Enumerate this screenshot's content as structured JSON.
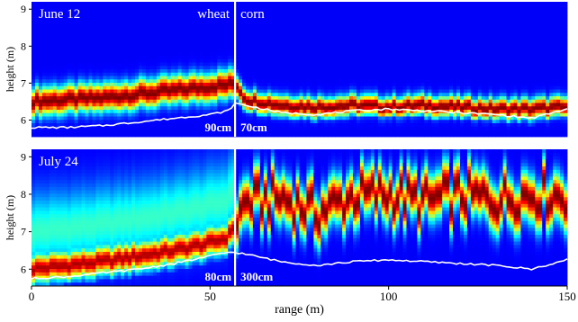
{
  "chart_data": {
    "type": "heatmap",
    "xlabel": "range (m)",
    "x_ticks": [
      0,
      50,
      100,
      150
    ],
    "xlim": [
      0,
      150
    ],
    "crop_boundary_x": 57,
    "colormap": "jet",
    "panels": [
      {
        "id": "top",
        "date_label": "June 12",
        "ylabel": "height (m)",
        "y_ticks": [
          6,
          7,
          8,
          9
        ],
        "ylim": [
          5.55,
          9.2
        ],
        "regions": [
          {
            "crop": "wheat",
            "height_label": "90cm"
          },
          {
            "crop": "corn",
            "height_label": "70cm"
          }
        ],
        "ground_line": {
          "x": [
            0,
            10,
            20,
            30,
            40,
            50,
            55,
            57,
            60,
            70,
            80,
            90,
            100,
            110,
            120,
            130,
            140,
            150
          ],
          "y": [
            5.8,
            5.8,
            5.85,
            5.95,
            6.05,
            6.15,
            6.25,
            6.45,
            6.4,
            6.2,
            6.15,
            6.25,
            6.3,
            6.25,
            6.2,
            6.15,
            6.05,
            6.3
          ]
        },
        "canopy_peak": {
          "x": [
            0,
            10,
            20,
            30,
            40,
            50,
            55,
            57,
            60,
            70,
            80,
            90,
            100,
            110,
            120,
            130,
            140,
            150
          ],
          "y": [
            6.5,
            6.55,
            6.6,
            6.7,
            6.8,
            6.9,
            6.95,
            7.0,
            6.55,
            6.4,
            6.35,
            6.4,
            6.35,
            6.4,
            6.35,
            6.3,
            6.3,
            6.35
          ]
        }
      },
      {
        "id": "bottom",
        "date_label": "July 24",
        "ylabel": "height (m)",
        "y_ticks": [
          6,
          7,
          8,
          9
        ],
        "ylim": [
          5.55,
          9.2
        ],
        "regions": [
          {
            "crop": "wheat",
            "height_label": "80cm"
          },
          {
            "crop": "corn",
            "height_label": "300cm"
          }
        ],
        "ground_line": {
          "x": [
            0,
            10,
            20,
            30,
            40,
            50,
            55,
            57,
            60,
            70,
            80,
            90,
            100,
            110,
            120,
            130,
            140,
            150
          ],
          "y": [
            5.75,
            5.8,
            5.9,
            6.0,
            6.15,
            6.35,
            6.45,
            6.45,
            6.4,
            6.2,
            6.1,
            6.2,
            6.25,
            6.2,
            6.15,
            6.1,
            6.0,
            6.25
          ]
        },
        "canopy_peak": {
          "x": [
            0,
            10,
            20,
            30,
            40,
            50,
            55,
            57,
            60,
            70,
            80,
            90,
            100,
            110,
            120,
            130,
            140,
            150
          ],
          "y": [
            6.0,
            6.1,
            6.2,
            6.35,
            6.5,
            6.7,
            6.85,
            7.2,
            7.8,
            7.9,
            7.5,
            7.95,
            8.0,
            7.8,
            8.0,
            7.85,
            8.0,
            7.95
          ]
        }
      }
    ]
  }
}
